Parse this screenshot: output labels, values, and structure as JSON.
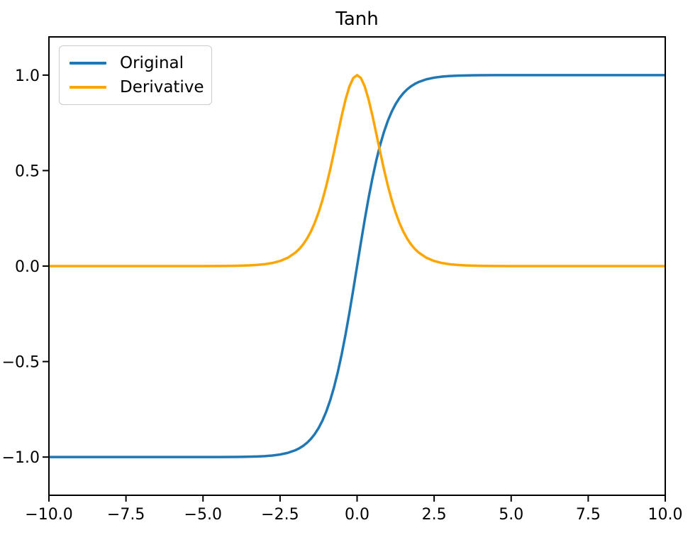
{
  "figure": {
    "background": "#ffffff"
  },
  "chart_data": {
    "type": "line",
    "title": "Tanh",
    "xlabel": "",
    "ylabel": "",
    "grid": false,
    "axis_color": "#000000",
    "line_width": 3.5,
    "xlim": [
      -10,
      10
    ],
    "ylim": [
      -1.2,
      1.2
    ],
    "xticks": [
      -10,
      -7.5,
      -5,
      -2.5,
      0,
      2.5,
      5,
      7.5,
      10
    ],
    "xtick_labels": [
      "−10.0",
      "−7.5",
      "−5.0",
      "−2.5",
      "0.0",
      "2.5",
      "5.0",
      "7.5",
      "10.0"
    ],
    "yticks": [
      -1,
      -0.5,
      0,
      0.5,
      1
    ],
    "ytick_labels": [
      "−1.0",
      "−0.5",
      "0.0",
      "0.5",
      "1.0"
    ],
    "legend": {
      "position": "upper left",
      "entries": [
        "Original",
        "Derivative"
      ]
    },
    "x": [
      -10,
      -9,
      -8,
      -7,
      -6,
      -5,
      -4.5,
      -4,
      -3.75,
      -3.5,
      -3.25,
      -3,
      -2.75,
      -2.5,
      -2.25,
      -2,
      -1.875,
      -1.75,
      -1.625,
      -1.5,
      -1.375,
      -1.25,
      -1.125,
      -1,
      -0.875,
      -0.75,
      -0.625,
      -0.5,
      -0.375,
      -0.25,
      -0.125,
      0,
      0.125,
      0.25,
      0.375,
      0.5,
      0.625,
      0.75,
      0.875,
      1,
      1.125,
      1.25,
      1.375,
      1.5,
      1.625,
      1.75,
      1.875,
      2,
      2.25,
      2.5,
      2.75,
      3,
      3.25,
      3.5,
      3.75,
      4,
      4.5,
      5,
      6,
      7,
      8,
      9,
      10
    ],
    "series": [
      {
        "name": "Original",
        "color": "#1f77b4",
        "values": [
          -1,
          -1,
          -1,
          -1,
          -1,
          -0.9999,
          -0.9998,
          -0.9993,
          -0.9989,
          -0.9982,
          -0.997,
          -0.9951,
          -0.9919,
          -0.9866,
          -0.978,
          -0.964,
          -0.954,
          -0.9414,
          -0.9253,
          -0.9051,
          -0.8798,
          -0.8483,
          -0.8093,
          -0.7616,
          -0.7039,
          -0.6351,
          -0.5546,
          -0.4621,
          -0.3584,
          -0.2449,
          -0.1244,
          0,
          0.1244,
          0.2449,
          0.3584,
          0.4621,
          0.5546,
          0.6351,
          0.7039,
          0.7616,
          0.8093,
          0.8483,
          0.8798,
          0.9051,
          0.9253,
          0.9414,
          0.954,
          0.964,
          0.978,
          0.9866,
          0.9919,
          0.9951,
          0.997,
          0.9982,
          0.9989,
          0.9993,
          0.9998,
          0.9999,
          1,
          1,
          1,
          1,
          1
        ]
      },
      {
        "name": "Derivative",
        "color": "#ffa500",
        "values": [
          0,
          0,
          0,
          0,
          0,
          0.0002,
          0.0005,
          0.0013,
          0.0022,
          0.0036,
          0.006,
          0.0099,
          0.0162,
          0.0266,
          0.0435,
          0.0707,
          0.0898,
          0.1138,
          0.1438,
          0.1807,
          0.226,
          0.2804,
          0.345,
          0.42,
          0.5045,
          0.5966,
          0.6924,
          0.7864,
          0.8715,
          0.94,
          0.9845,
          1,
          0.9845,
          0.94,
          0.8715,
          0.7864,
          0.6924,
          0.5966,
          0.5045,
          0.42,
          0.345,
          0.2804,
          0.226,
          0.1807,
          0.1438,
          0.1138,
          0.0898,
          0.0707,
          0.0435,
          0.0266,
          0.0162,
          0.0099,
          0.006,
          0.0036,
          0.0022,
          0.0013,
          0.0005,
          0.0002,
          0,
          0,
          0,
          0,
          0
        ]
      }
    ]
  }
}
